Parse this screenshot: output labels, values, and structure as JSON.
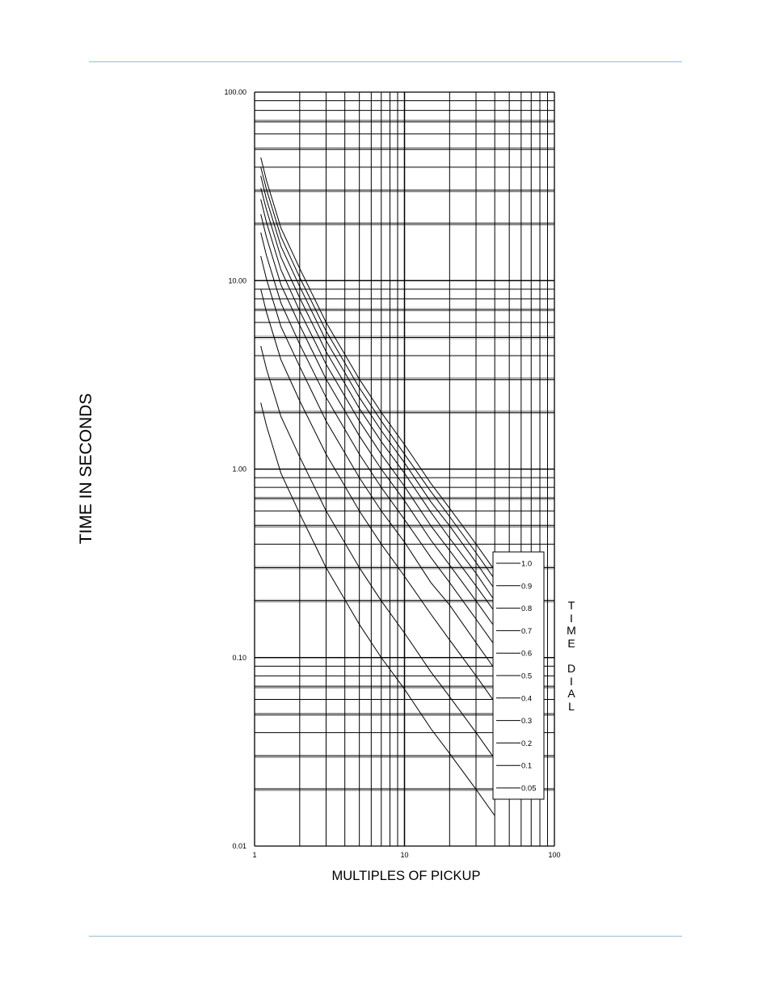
{
  "page": {
    "rule_color": "#9bbbd4"
  },
  "chart_data": {
    "type": "line",
    "title": "",
    "xlabel": "MULTIPLES OF PICKUP",
    "ylabel": "TIME IN SECONDS",
    "side_label": "TIME DIAL",
    "x_scale": "log",
    "y_scale": "log",
    "xlim": [
      1,
      100
    ],
    "ylim": [
      0.01,
      100
    ],
    "x_ticks": [
      "1",
      "10",
      "100"
    ],
    "y_ticks": [
      "100.00",
      "10.00",
      "1.00",
      "0.10",
      "0.01"
    ],
    "grid": true,
    "legend_position": "bottom-right",
    "line_color": "#000000",
    "x": [
      1.1,
      1.2,
      1.5,
      2,
      3,
      5,
      7,
      10,
      15,
      20,
      30,
      40
    ],
    "series": [
      {
        "name": "1.0",
        "values": [
          45.0,
          34.0,
          19.0,
          11.6,
          6.0,
          3.0,
          2.0,
          1.35,
          0.84,
          0.62,
          0.4,
          0.29
        ]
      },
      {
        "name": "0.9",
        "values": [
          40.0,
          30.5,
          17.1,
          10.4,
          5.4,
          2.7,
          1.8,
          1.2,
          0.76,
          0.56,
          0.36,
          0.26
        ]
      },
      {
        "name": "0.8",
        "values": [
          36.0,
          27.0,
          15.2,
          9.3,
          4.8,
          2.4,
          1.6,
          1.08,
          0.67,
          0.5,
          0.32,
          0.23
        ]
      },
      {
        "name": "0.7",
        "values": [
          31.0,
          23.8,
          13.3,
          8.1,
          4.2,
          2.1,
          1.4,
          0.95,
          0.59,
          0.43,
          0.28,
          0.2
        ]
      },
      {
        "name": "0.6",
        "values": [
          27.0,
          20.4,
          11.4,
          6.9,
          3.6,
          1.8,
          1.2,
          0.81,
          0.5,
          0.37,
          0.24,
          0.175
        ]
      },
      {
        "name": "0.5",
        "values": [
          22.5,
          17.0,
          9.5,
          5.8,
          3.0,
          1.5,
          1.0,
          0.68,
          0.42,
          0.31,
          0.2,
          0.145
        ]
      },
      {
        "name": "0.4",
        "values": [
          18.0,
          13.6,
          7.6,
          4.6,
          2.4,
          1.2,
          0.8,
          0.54,
          0.34,
          0.25,
          0.16,
          0.116
        ]
      },
      {
        "name": "0.3",
        "values": [
          13.5,
          10.2,
          5.7,
          3.5,
          1.8,
          0.9,
          0.6,
          0.41,
          0.25,
          0.19,
          0.12,
          0.087
        ]
      },
      {
        "name": "0.2",
        "values": [
          9.0,
          6.8,
          3.8,
          2.3,
          1.2,
          0.6,
          0.4,
          0.27,
          0.17,
          0.124,
          0.08,
          0.058
        ]
      },
      {
        "name": "0.1",
        "values": [
          4.5,
          3.4,
          1.9,
          1.16,
          0.6,
          0.3,
          0.2,
          0.135,
          0.084,
          0.062,
          0.04,
          0.029
        ]
      },
      {
        "name": "0.05",
        "values": [
          2.25,
          1.7,
          0.95,
          0.58,
          0.3,
          0.15,
          0.1,
          0.068,
          0.042,
          0.031,
          0.02,
          0.0145
        ]
      }
    ]
  }
}
